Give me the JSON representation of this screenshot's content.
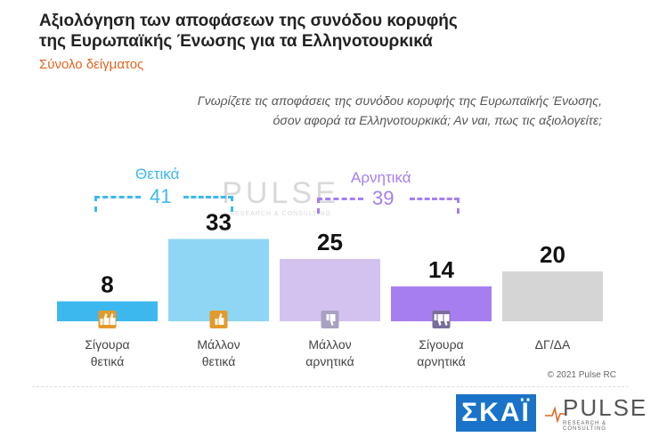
{
  "header": {
    "title_line1": "Αξιολόγηση των αποφάσεων της συνόδου κορυφής",
    "title_line2": "της Ευρωπαϊκής Ένωσης για τα Ελληνοτουρκικά",
    "subtitle": "Σύνολο δείγματος",
    "question_line1": "Γνωρίζετε τις αποφάσεις της συνόδου κορυφής της Ευρωπαϊκής Ένωσης,",
    "question_line2": "όσον αφορά τα Ελληνοτουρκικά; Αν ναι, πως τις αξιολογείτε;"
  },
  "groups": {
    "positive": {
      "label": "Θετικά",
      "value": "41",
      "color": "#3db8ef"
    },
    "negative": {
      "label": "Αρνητικά",
      "value": "39",
      "color": "#a67ef0"
    }
  },
  "watermark": {
    "big": "PULSE",
    "small": "RESEARCH & CONSULTING"
  },
  "chart_data": {
    "type": "bar",
    "categories": [
      [
        "Σίγουρα",
        "θετικά"
      ],
      [
        "Μάλλον",
        "θετικά"
      ],
      [
        "Μάλλον",
        "αρνητικά"
      ],
      [
        "Σίγουρα",
        "αρνητικά"
      ],
      [
        "ΔΓ/ΔΑ"
      ]
    ],
    "values": [
      8,
      33,
      25,
      14,
      20
    ],
    "colors": [
      "#3db8ef",
      "#8fd6f5",
      "#d3c2ef",
      "#a67ef0",
      "#d5d5d5"
    ],
    "icons": [
      "double-thumbs-up-icon",
      "thumbs-up-icon",
      "thumbs-down-icon",
      "double-thumbs-down-icon",
      ""
    ],
    "icon_colors": [
      "#e39a2c",
      "#e39a2c",
      "#a9a0c2",
      "#7a6e9c",
      ""
    ],
    "ylim": [
      0,
      40
    ],
    "grid": false,
    "legend": "none"
  },
  "footer": {
    "copyright": "© 2021 Pulse RC",
    "skai_logo": "ΣΚΑΪ",
    "pulse_logo_big": "PULSE",
    "pulse_logo_small": "RESEARCH & CONSULTING"
  }
}
